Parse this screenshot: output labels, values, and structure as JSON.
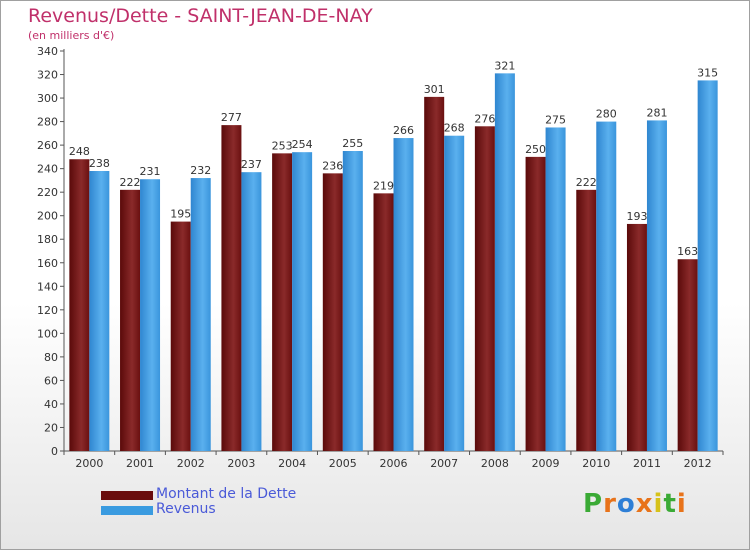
{
  "header": {
    "title": "Revenus/Dette - SAINT-JEAN-DE-NAY",
    "subtitle": "(en milliers d'€)"
  },
  "colors": {
    "dette": "#7a1a1a",
    "revenus": "#3a9be0",
    "title": "#c0306a",
    "legend_text": "#4a5ad8"
  },
  "legend": {
    "items": [
      {
        "label": "Montant de la Dette",
        "color": "#6a0d0d"
      },
      {
        "label": "Revenus",
        "color": "#3a9be0"
      }
    ]
  },
  "logo": {
    "letters": [
      "P",
      "r",
      "o",
      "x",
      "i",
      "t",
      "i"
    ],
    "colors": [
      "#3aaa35",
      "#e8731a",
      "#2e7fd6",
      "#e8731a",
      "#d6c21a",
      "#3aaa35",
      "#e8731a"
    ]
  },
  "chart_data": {
    "type": "bar",
    "title": "Revenus/Dette - SAINT-JEAN-DE-NAY",
    "subtitle": "(en milliers d'€)",
    "categories": [
      "2000",
      "2001",
      "2002",
      "2003",
      "2004",
      "2005",
      "2006",
      "2007",
      "2008",
      "2009",
      "2010",
      "2011",
      "2012"
    ],
    "series": [
      {
        "name": "Montant de la Dette",
        "values": [
          248,
          222,
          195,
          277,
          253,
          236,
          219,
          301,
          276,
          250,
          222,
          193,
          163
        ]
      },
      {
        "name": "Revenus",
        "values": [
          238,
          231,
          232,
          237,
          254,
          255,
          266,
          268,
          321,
          275,
          280,
          281,
          315
        ]
      }
    ],
    "ylim": [
      0,
      340
    ],
    "ystep": 20,
    "grid": false,
    "legend_position": "bottom-left"
  }
}
